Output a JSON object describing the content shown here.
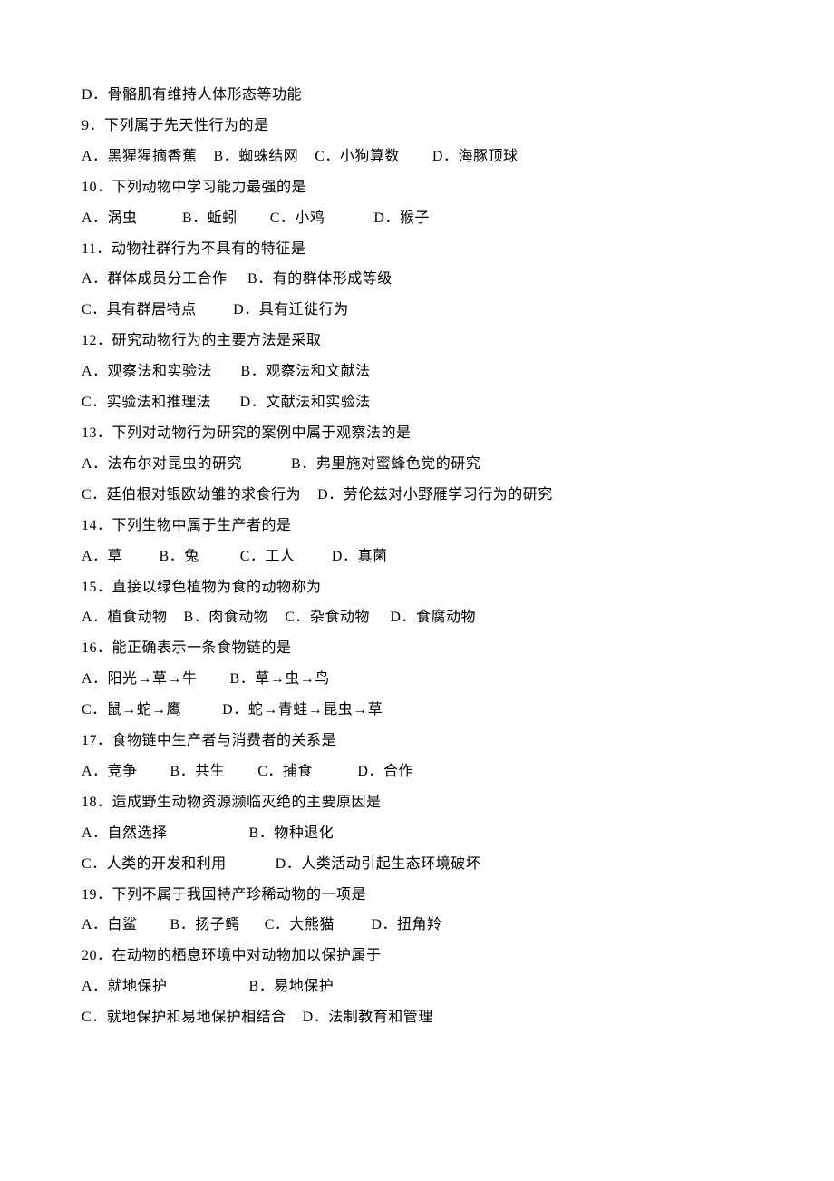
{
  "typography": {
    "font_family": "SimSun",
    "font_size": 16,
    "line_height": 2.12,
    "color": "#000000",
    "background": "#ffffff"
  },
  "lines": [
    "D．骨骼肌有维持人体形态等功能",
    "9．下列属于先天性行为的是",
    "A．黑猩猩摘香蕉    B．蜘蛛结网    C．小狗算数        D．海豚顶球",
    "10．下列动物中学习能力最强的是",
    "A．涡虫           B．蚯蚓        C．小鸡            D．猴子",
    "11．动物社群行为不具有的特征是",
    "A．群体成员分工合作     B．有的群体形成等级",
    "C．具有群居特点         D．具有迁徙行为",
    "12．研究动物行为的主要方法是采取",
    "A．观察法和实验法       B．观察法和文献法",
    "C．实验法和推理法       D．文献法和实验法",
    "13．下列对动物行为研究的案例中属于观察法的是",
    "A．法布尔对昆虫的研究            B．弗里施对蜜蜂色觉的研究",
    "C．廷伯根对银欧幼雏的求食行为    D．劳伦兹对小野雁学习行为的研究",
    "14．下列生物中属于生产者的是",
    "A．草         B．兔          C．工人         D．真菌",
    "15．直接以绿色植物为食的动物称为",
    "A．植食动物    B．肉食动物    C．杂食动物     D．食腐动物",
    "16．能正确表示一条食物链的是",
    "A．阳光→草→牛        B．草→虫→鸟",
    "C．鼠→蛇→鹰          D．蛇→青蛙→昆虫→草",
    "17．食物链中生产者与消费者的关系是",
    "A．竞争        B．共生        C．捕食           D．合作",
    "18．造成野生动物资源濒临灭绝的主要原因是",
    "A．自然选择                    B．物种退化",
    "C．人类的开发和利用            D．人类活动引起生态环境破坏",
    "19．下列不属于我国特产珍稀动物的一项是",
    "A．白鲨        B．扬子鳄      C．大熊猫         D．扭角羚",
    "20．在动物的栖息环境中对动物加以保护属于",
    "A．就地保护                    B．易地保护",
    "C．就地保护和易地保护相结合    D．法制教育和管理"
  ]
}
